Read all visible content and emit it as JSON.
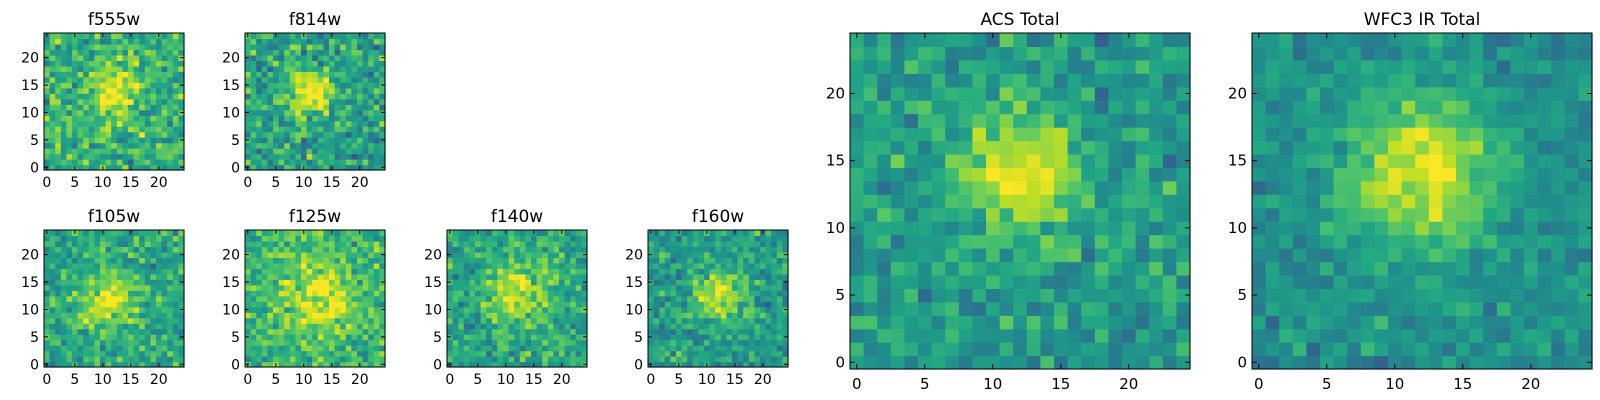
{
  "chart_data": [
    {
      "type": "heatmap",
      "title": "f555w",
      "colormap": "viridis",
      "size": 25,
      "peak": [
        12,
        14
      ],
      "amp": 0.38,
      "sigma": 3.0,
      "base": 0.64,
      "noise": 0.2,
      "seed": 11,
      "xticks": [
        0,
        5,
        10,
        15,
        20
      ],
      "yticks": [
        0,
        5,
        10,
        15,
        20
      ],
      "xlim": [
        -0.5,
        24.5
      ],
      "ylim": [
        -0.5,
        24.5
      ]
    },
    {
      "type": "heatmap",
      "title": "f814w",
      "colormap": "viridis",
      "size": 25,
      "peak": [
        11,
        14
      ],
      "amp": 0.45,
      "sigma": 2.8,
      "base": 0.58,
      "noise": 0.2,
      "seed": 23,
      "xticks": [
        0,
        5,
        10,
        15,
        20
      ],
      "yticks": [
        0,
        5,
        10,
        15,
        20
      ],
      "xlim": [
        -0.5,
        24.5
      ],
      "ylim": [
        -0.5,
        24.5
      ]
    },
    {
      "type": "heatmap",
      "title": "f105w",
      "colormap": "viridis",
      "size": 25,
      "peak": [
        11,
        12
      ],
      "amp": 0.34,
      "sigma": 3.6,
      "base": 0.6,
      "noise": 0.17,
      "seed": 37,
      "xticks": [
        0,
        5,
        10,
        15,
        20
      ],
      "yticks": [
        0,
        5,
        10,
        15,
        20
      ],
      "xlim": [
        -0.5,
        24.5
      ],
      "ylim": [
        -0.5,
        24.5
      ]
    },
    {
      "type": "heatmap",
      "title": "f125w",
      "colormap": "viridis",
      "size": 25,
      "peak": [
        13,
        12
      ],
      "amp": 0.3,
      "sigma": 4.5,
      "base": 0.66,
      "noise": 0.17,
      "seed": 41,
      "xticks": [
        0,
        5,
        10,
        15,
        20
      ],
      "yticks": [
        0,
        5,
        10,
        15,
        20
      ],
      "xlim": [
        -0.5,
        24.5
      ],
      "ylim": [
        -0.5,
        24.5
      ]
    },
    {
      "type": "heatmap",
      "title": "f140w",
      "colormap": "viridis",
      "size": 25,
      "peak": [
        12,
        13
      ],
      "amp": 0.35,
      "sigma": 3.6,
      "base": 0.6,
      "noise": 0.17,
      "seed": 53,
      "xticks": [
        0,
        5,
        10,
        15,
        20
      ],
      "yticks": [
        0,
        5,
        10,
        15,
        20
      ],
      "xlim": [
        -0.5,
        24.5
      ],
      "ylim": [
        -0.5,
        24.5
      ]
    },
    {
      "type": "heatmap",
      "title": "f160w",
      "colormap": "viridis",
      "size": 25,
      "peak": [
        12,
        13
      ],
      "amp": 0.42,
      "sigma": 3.0,
      "base": 0.56,
      "noise": 0.16,
      "seed": 67,
      "xticks": [
        0,
        5,
        10,
        15,
        20
      ],
      "yticks": [
        0,
        5,
        10,
        15,
        20
      ],
      "xlim": [
        -0.5,
        24.5
      ],
      "ylim": [
        -0.5,
        24.5
      ]
    },
    {
      "type": "heatmap",
      "title": "ACS Total",
      "colormap": "viridis",
      "size": 25,
      "peak": [
        12,
        14
      ],
      "amp": 0.42,
      "sigma": 3.0,
      "base": 0.55,
      "noise": 0.15,
      "seed": 79,
      "xticks": [
        0,
        5,
        10,
        15,
        20
      ],
      "yticks": [
        0,
        5,
        10,
        15,
        20
      ],
      "xlim": [
        -0.5,
        24.5
      ],
      "ylim": [
        -0.5,
        24.5
      ]
    },
    {
      "type": "heatmap",
      "title": "WFC3 IR Total",
      "colormap": "viridis",
      "size": 25,
      "peak": [
        12,
        14
      ],
      "amp": 0.45,
      "sigma": 3.8,
      "base": 0.5,
      "noise": 0.11,
      "seed": 97,
      "xticks": [
        0,
        5,
        10,
        15,
        20
      ],
      "yticks": [
        0,
        5,
        10,
        15,
        20
      ],
      "xlim": [
        -0.5,
        24.5
      ],
      "ylim": [
        -0.5,
        24.5
      ]
    }
  ]
}
